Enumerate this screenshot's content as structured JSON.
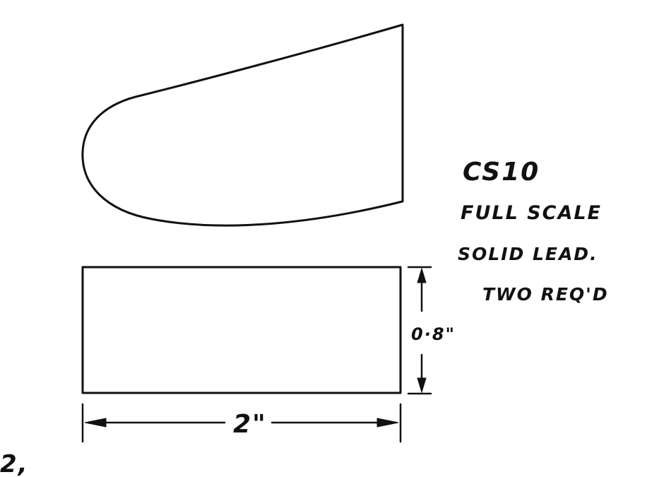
{
  "part_id": "CS10",
  "notes": {
    "line1": "FULL SCALE",
    "line2": "SOLID LEAD.",
    "line3": "TWO REQ'D"
  },
  "dimensions": {
    "height_label": "0·8\"",
    "width_label": "2\""
  },
  "page_number": "2,"
}
